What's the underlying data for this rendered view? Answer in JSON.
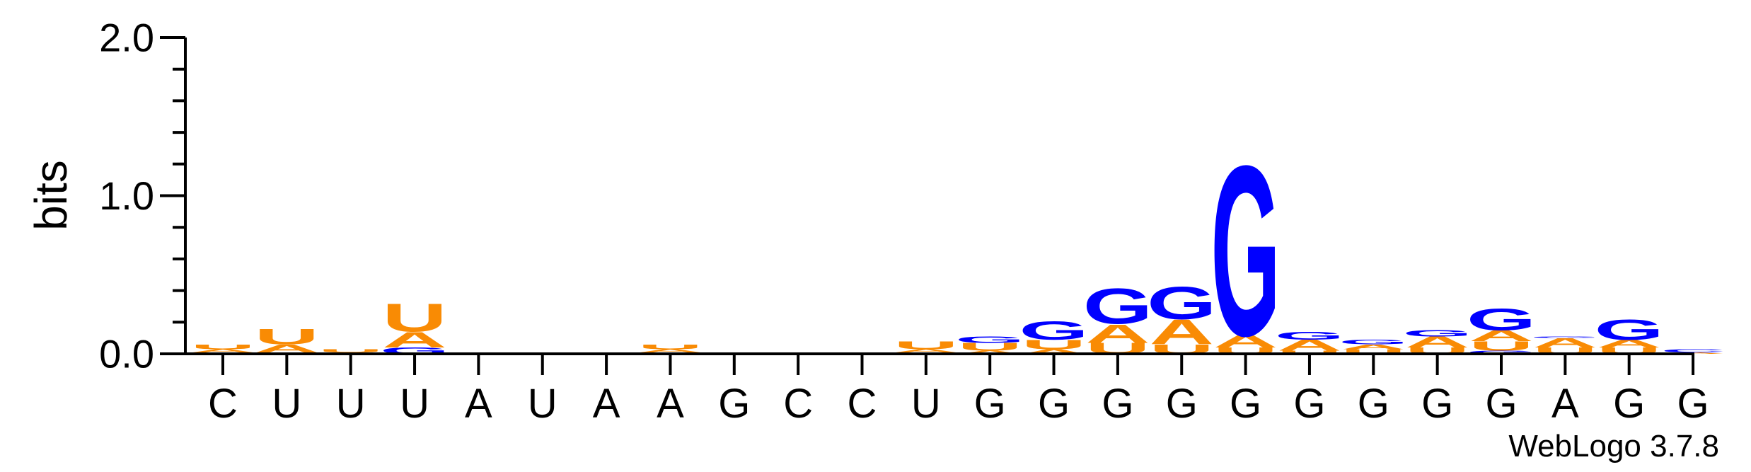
{
  "chart_data": {
    "type": "sequence-logo",
    "ylabel": "bits",
    "ylim": [
      0,
      2.0
    ],
    "yticks": [
      "0.0",
      "1.0",
      "2.0"
    ],
    "xlabels": [
      "C",
      "U",
      "U",
      "U",
      "A",
      "U",
      "A",
      "A",
      "G",
      "C",
      "C",
      "U",
      "G",
      "G",
      "G",
      "G",
      "G",
      "G",
      "G",
      "G",
      "G",
      "A",
      "G",
      "G"
    ],
    "footer": "WebLogo 3.7.8",
    "colors": {
      "A": "#f98b04",
      "U": "#f98b04",
      "G": "#0000ff",
      "C": "#0000ff"
    },
    "stacks": [
      [
        {
          "l": "C",
          "v": 0.01
        },
        {
          "l": "A",
          "v": 0.02
        },
        {
          "l": "U",
          "v": 0.03
        }
      ],
      [
        {
          "l": "C",
          "v": 0.01
        },
        {
          "l": "A",
          "v": 0.05
        },
        {
          "l": "U",
          "v": 0.1
        }
      ],
      [
        {
          "l": "A",
          "v": 0.01
        },
        {
          "l": "U",
          "v": 0.02
        }
      ],
      [
        {
          "l": "G",
          "v": 0.04
        },
        {
          "l": "A",
          "v": 0.1
        },
        {
          "l": "U",
          "v": 0.18
        }
      ],
      [
        {
          "l": "U",
          "v": 0.01
        }
      ],
      [],
      [],
      [
        {
          "l": "G",
          "v": 0.01
        },
        {
          "l": "A",
          "v": 0.02
        },
        {
          "l": "U",
          "v": 0.03
        }
      ],
      [
        {
          "l": "G",
          "v": 0.01
        }
      ],
      [],
      [],
      [
        {
          "l": "G",
          "v": 0.01
        },
        {
          "l": "A",
          "v": 0.02
        },
        {
          "l": "U",
          "v": 0.05
        }
      ],
      [
        {
          "l": "A",
          "v": 0.02
        },
        {
          "l": "U",
          "v": 0.05
        },
        {
          "l": "G",
          "v": 0.04
        }
      ],
      [
        {
          "l": "A",
          "v": 0.03
        },
        {
          "l": "U",
          "v": 0.06
        },
        {
          "l": "G",
          "v": 0.12
        }
      ],
      [
        {
          "l": "U",
          "v": 0.07
        },
        {
          "l": "A",
          "v": 0.12
        },
        {
          "l": "G",
          "v": 0.23
        }
      ],
      [
        {
          "l": "U",
          "v": 0.06
        },
        {
          "l": "A",
          "v": 0.16
        },
        {
          "l": "G",
          "v": 0.21
        }
      ],
      [
        {
          "l": "U",
          "v": 0.04
        },
        {
          "l": "A",
          "v": 0.08
        },
        {
          "l": "G",
          "v": 1.1
        }
      ],
      [
        {
          "l": "U",
          "v": 0.02
        },
        {
          "l": "A",
          "v": 0.07
        },
        {
          "l": "G",
          "v": 0.05
        }
      ],
      [
        {
          "l": "U",
          "v": 0.03
        },
        {
          "l": "A",
          "v": 0.03
        },
        {
          "l": "G",
          "v": 0.03
        }
      ],
      [
        {
          "l": "U",
          "v": 0.04
        },
        {
          "l": "A",
          "v": 0.07
        },
        {
          "l": "G",
          "v": 0.04
        }
      ],
      [
        {
          "l": "G",
          "v": 0.02
        },
        {
          "l": "U",
          "v": 0.06
        },
        {
          "l": "A",
          "v": 0.07
        },
        {
          "l": "G",
          "v": 0.14
        }
      ],
      [
        {
          "l": "U",
          "v": 0.04
        },
        {
          "l": "A",
          "v": 0.06
        },
        {
          "l": "G",
          "v": 0.01
        }
      ],
      [
        {
          "l": "U",
          "v": 0.04
        },
        {
          "l": "A",
          "v": 0.05
        },
        {
          "l": "G",
          "v": 0.13
        }
      ],
      [
        {
          "l": "A",
          "v": 0.01
        },
        {
          "l": "C",
          "v": 0.02
        }
      ]
    ]
  }
}
